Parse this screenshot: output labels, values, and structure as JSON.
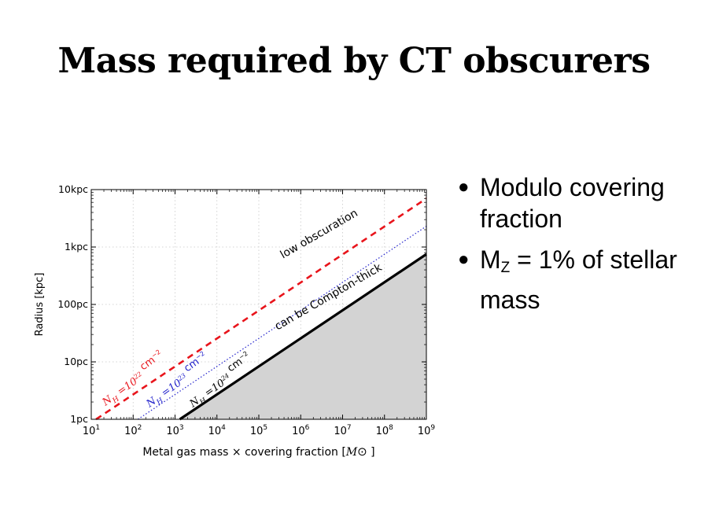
{
  "slide": {
    "title": "Mass required by CT obscurers",
    "bullets": [
      {
        "text": "Modulo covering fraction"
      },
      {
        "pre": "M",
        "sub": "Z",
        "post": " = 1% of stellar mass"
      }
    ]
  },
  "chart_data": {
    "type": "line",
    "xlabel_pre": "Metal gas mass ",
    "xlabel_times": "×",
    "xlabel_mid": " covering fraction [",
    "xlabel_sym": "M",
    "xlabel_post": " ]",
    "ylabel": "Radius [kpc]",
    "x_scale": "log",
    "y_scale": "log",
    "xlim": [
      10,
      1000000000
    ],
    "ylim": [
      0.001,
      10
    ],
    "x_ticks": [
      {
        "value": 10,
        "base": "10",
        "exp": "1"
      },
      {
        "value": 100,
        "base": "10",
        "exp": "2"
      },
      {
        "value": 1000,
        "base": "10",
        "exp": "3"
      },
      {
        "value": 10000,
        "base": "10",
        "exp": "4"
      },
      {
        "value": 100000,
        "base": "10",
        "exp": "5"
      },
      {
        "value": 1000000,
        "base": "10",
        "exp": "6"
      },
      {
        "value": 10000000,
        "base": "10",
        "exp": "7"
      },
      {
        "value": 100000000,
        "base": "10",
        "exp": "8"
      },
      {
        "value": 1000000000,
        "base": "10",
        "exp": "9"
      }
    ],
    "y_ticks": [
      {
        "value": 0.001,
        "label": "1pc"
      },
      {
        "value": 0.01,
        "label": "10pc"
      },
      {
        "value": 0.1,
        "label": "100pc"
      },
      {
        "value": 1,
        "label": "1kpc"
      },
      {
        "value": 10,
        "label": "10kpc"
      }
    ],
    "grid": true,
    "series": [
      {
        "color": "#e8141b",
        "style": "dashed",
        "points": [
          {
            "x": 13,
            "y": 0.001
          },
          {
            "x": 1000000000,
            "y": 7
          }
        ],
        "label": {
          "pre": "N",
          "sub": "H",
          "mid": " =10",
          "exp": "22",
          "unit": " cm",
          "unit_exp": "−2"
        }
      },
      {
        "color": "#2222cc",
        "style": "dotted",
        "points": [
          {
            "x": 130,
            "y": 0.001
          },
          {
            "x": 1000000000,
            "y": 2.3
          }
        ],
        "label": {
          "pre": "N",
          "sub": "H",
          "mid": " =10",
          "exp": "23",
          "unit": " cm",
          "unit_exp": "−2"
        }
      },
      {
        "color": "#000000",
        "style": "solid",
        "points": [
          {
            "x": 1300,
            "y": 0.001
          },
          {
            "x": 1000000000,
            "y": 0.75
          }
        ],
        "label": {
          "pre": "N",
          "sub": "H",
          "mid": " =10",
          "exp": "24",
          "unit": " cm",
          "unit_exp": "−2"
        }
      }
    ],
    "shaded_region": {
      "color": "#d3d3d3",
      "below_series": 2
    },
    "annotations": [
      {
        "text": "low obscuration",
        "x": 3000000,
        "y": 1.5
      },
      {
        "text": "can be Compton-thick",
        "x": 5000000,
        "y": 0.12
      }
    ]
  }
}
